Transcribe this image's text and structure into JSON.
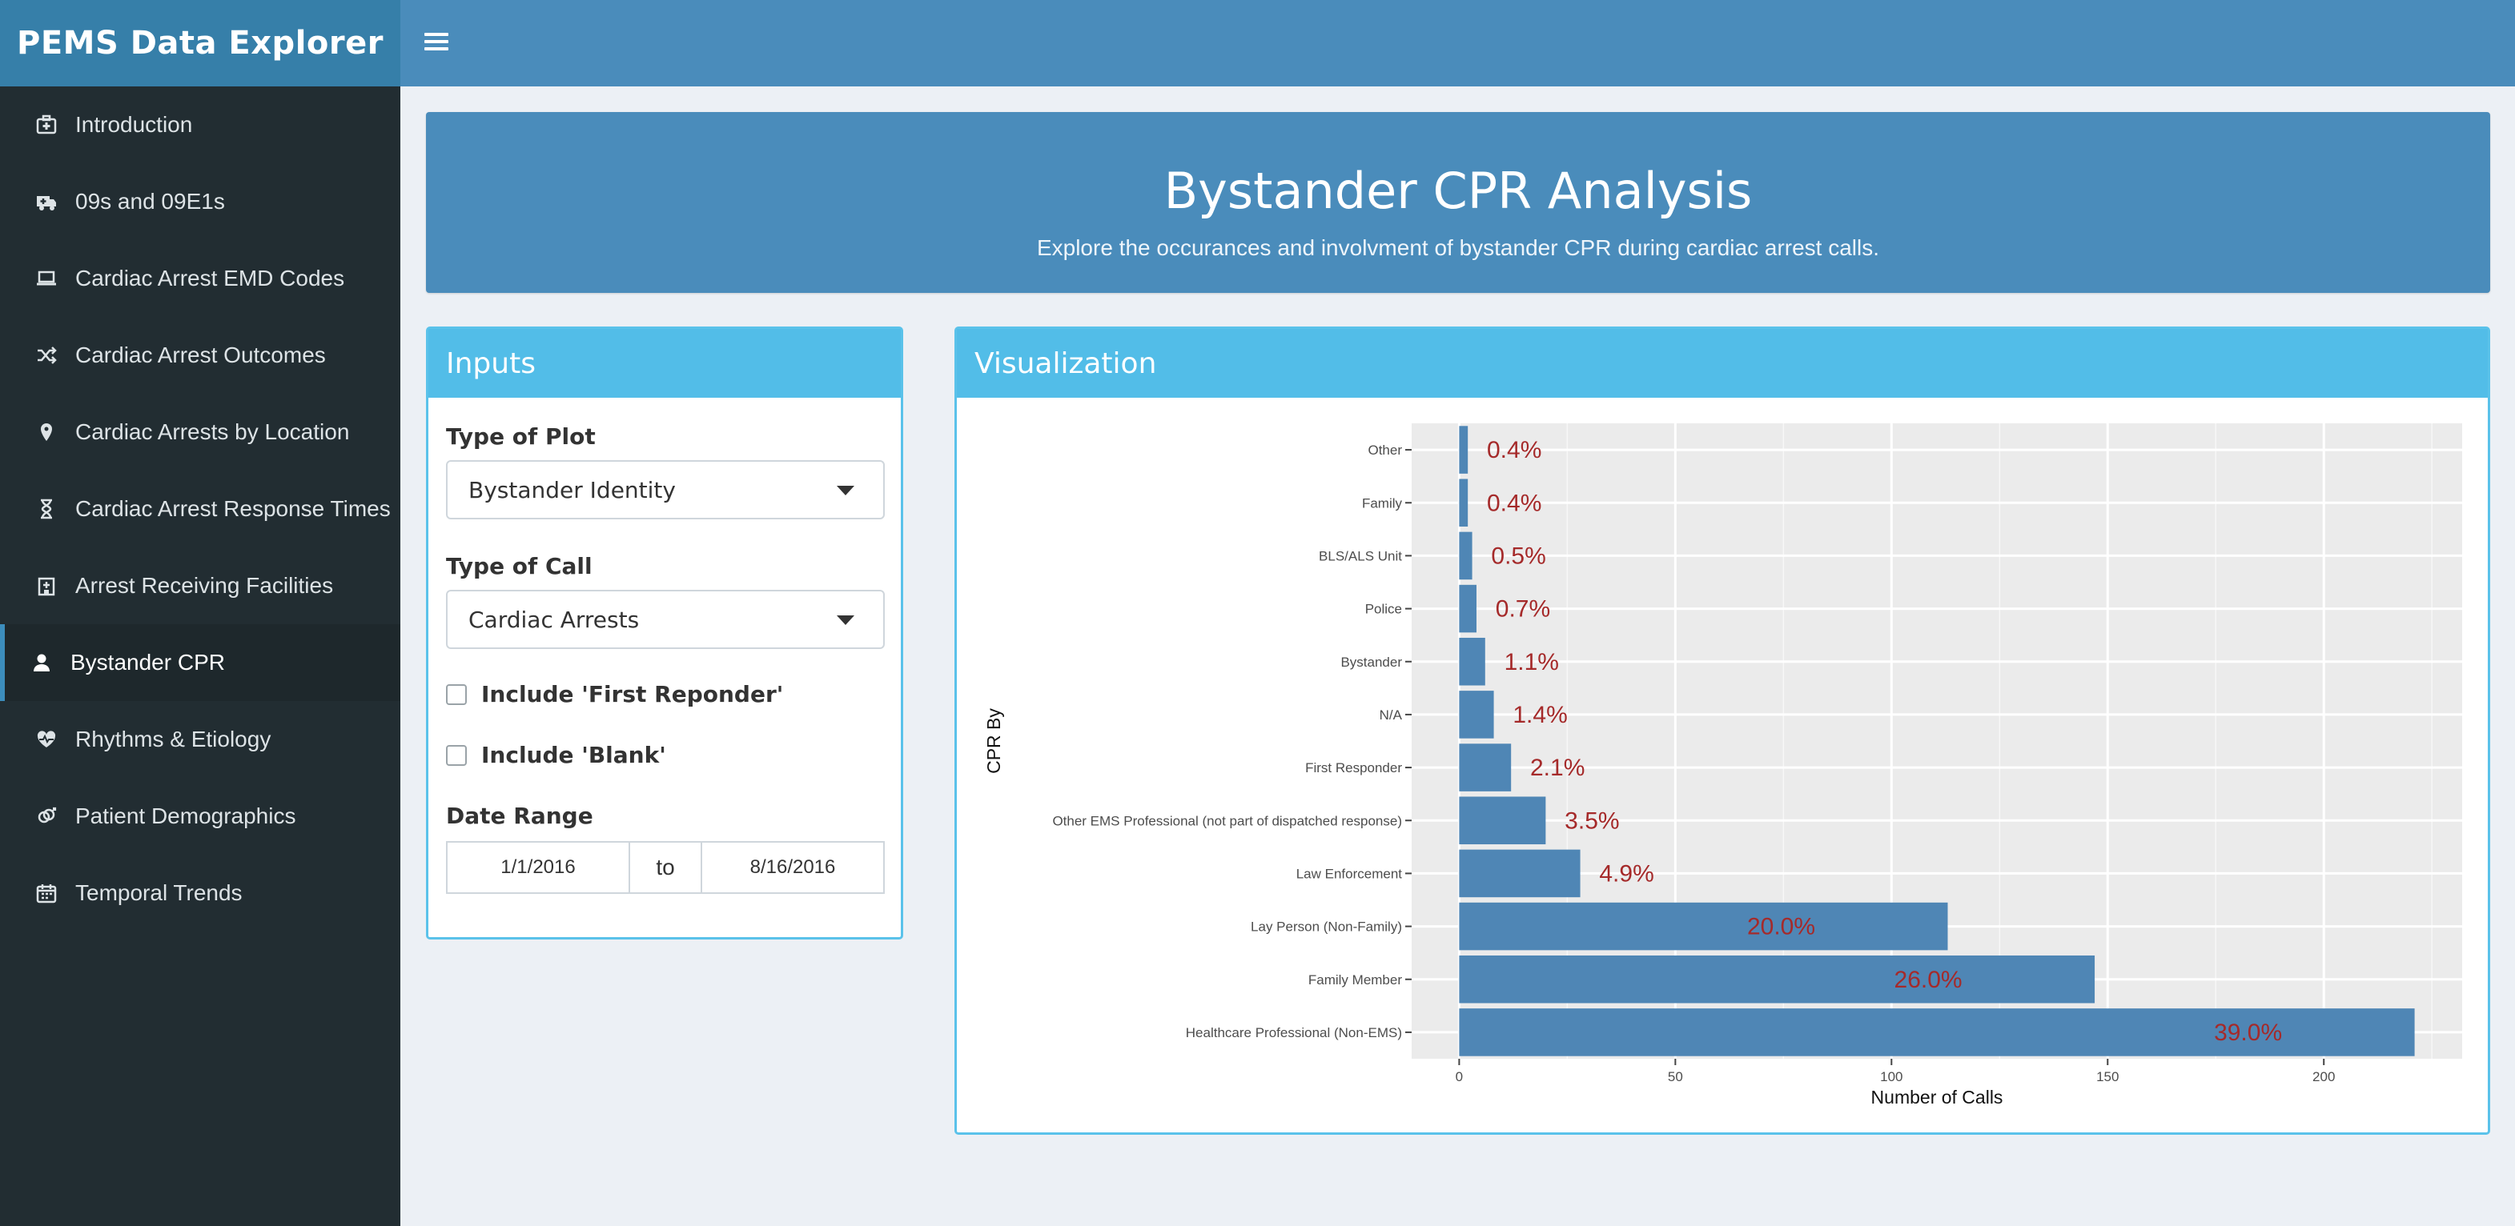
{
  "app": {
    "title": "PEMS Data Explorer"
  },
  "sidebar": {
    "items": [
      {
        "label": "Introduction",
        "icon": "first-aid-kit-icon"
      },
      {
        "label": "09s and 09E1s",
        "icon": "ambulance-icon"
      },
      {
        "label": "Cardiac Arrest EMD Codes",
        "icon": "laptop-icon"
      },
      {
        "label": "Cardiac Arrest Outcomes",
        "icon": "shuffle-icon"
      },
      {
        "label": "Cardiac Arrests by Location",
        "icon": "map-marker-icon"
      },
      {
        "label": "Cardiac Arrest Response Times",
        "icon": "hourglass-icon"
      },
      {
        "label": "Arrest Receiving Facilities",
        "icon": "hospital-icon"
      },
      {
        "label": "Bystander CPR",
        "icon": "user-icon",
        "active": true
      },
      {
        "label": "Rhythms & Etiology",
        "icon": "heartbeat-icon"
      },
      {
        "label": "Patient Demographics",
        "icon": "gender-icon"
      },
      {
        "label": "Temporal Trends",
        "icon": "calendar-icon"
      }
    ]
  },
  "hero": {
    "title": "Bystander CPR Analysis",
    "subtitle": "Explore the occurances and involvment of bystander CPR during cardiac arrest calls."
  },
  "inputs": {
    "header": "Inputs",
    "plot_type_label": "Type of Plot",
    "plot_type_value": "Bystander Identity",
    "call_type_label": "Type of Call",
    "call_type_value": "Cardiac Arrests",
    "include_first_responder": "Include 'First Reponder'",
    "include_blank": "Include 'Blank'",
    "date_range_label": "Date Range",
    "date_start": "1/1/2016",
    "date_sep": "to",
    "date_end": "8/16/2016"
  },
  "visualization": {
    "header": "Visualization"
  },
  "colors": {
    "bar": "#4f86b5",
    "label": "#a52a2a",
    "panel": "#ebebeb",
    "accent": "#52bde8"
  },
  "chart_data": {
    "type": "bar",
    "orientation": "horizontal",
    "xlabel": "Number of Calls",
    "ylabel": "CPR By",
    "xlim": [
      -11,
      232
    ],
    "xticks": [
      0,
      50,
      100,
      150,
      200
    ],
    "categories": [
      "Other",
      "Family",
      "BLS/ALS Unit",
      "Police",
      "Bystander",
      "N/A",
      "First Responder",
      "Other EMS Professional (not part of dispatched response)",
      "Law Enforcement",
      "Lay Person (Non-Family)",
      "Family Member",
      "Healthcare Professional (Non-EMS)"
    ],
    "values": [
      2,
      2,
      3,
      4,
      6,
      8,
      12,
      20,
      28,
      113,
      147,
      221
    ],
    "labels": [
      "0.4%",
      "0.4%",
      "0.5%",
      "0.7%",
      "1.1%",
      "1.4%",
      "2.1%",
      "3.5%",
      "4.9%",
      "20.0%",
      "26.0%",
      "39.0%"
    ],
    "grid": true
  }
}
